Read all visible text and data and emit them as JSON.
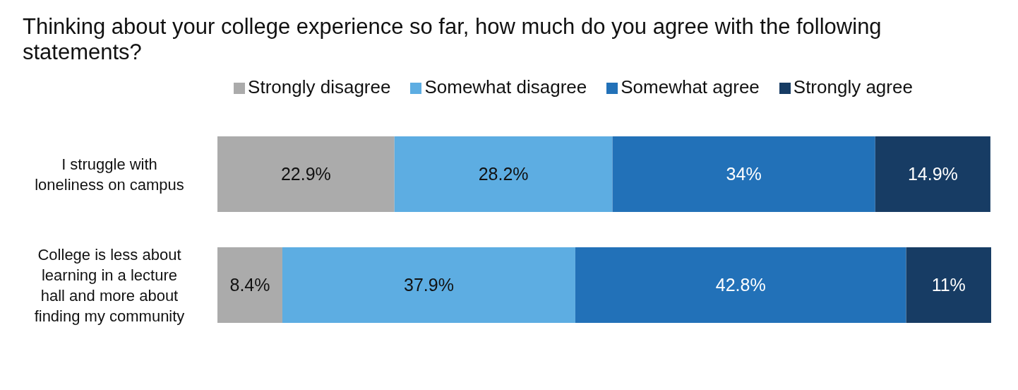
{
  "chart_data": {
    "type": "bar",
    "orientation": "horizontal",
    "stacked": true,
    "relative": false,
    "title": "Thinking about your college experience so far, how much do you agree with the following statements?",
    "categories": [
      "I struggle with loneliness on campus",
      "College is less about learning in a lecture hall and more about finding my community"
    ],
    "series": [
      {
        "name": "Strongly disagree",
        "color": "#ababab",
        "values": [
          22.9,
          8.4
        ],
        "value_labels": [
          "22.9%",
          "8.4%"
        ]
      },
      {
        "name": "Somewhat disagree",
        "color": "#5dade2",
        "values": [
          28.2,
          37.9
        ],
        "value_labels": [
          "28.2%",
          "37.9%"
        ]
      },
      {
        "name": "Somewhat agree",
        "color": "#2271b8",
        "values": [
          34,
          42.8
        ],
        "value_labels": [
          "34%",
          "42.8%"
        ]
      },
      {
        "name": "Strongly agree",
        "color": "#173c64",
        "values": [
          14.9,
          11
        ],
        "value_labels": [
          "14.9%",
          "11%"
        ]
      }
    ],
    "legend": "top",
    "grid": false
  }
}
